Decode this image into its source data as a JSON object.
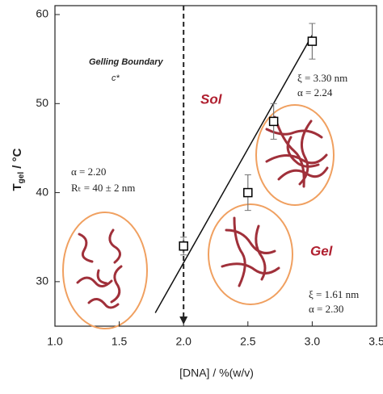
{
  "chart_data": {
    "type": "scatter",
    "x_label": "[DNA] / %(w/v)",
    "y_label": {
      "main": "T",
      "sub": "gel",
      "unit": " / °C"
    },
    "xlim": [
      1,
      3.5
    ],
    "xticks": [
      {
        "value": 1,
        "label": "1.0"
      },
      1.5,
      {
        "value": 2,
        "label": "2.0"
      },
      2.5,
      {
        "value": 3,
        "label": "3.0"
      },
      3.5
    ],
    "ylim": [
      25,
      61
    ],
    "yticks": [
      30,
      40,
      50,
      60
    ],
    "series": [
      {
        "color": "#000000",
        "x": [
          2.0,
          2.5,
          2.7,
          3.0
        ],
        "values": [
          34,
          40,
          48,
          57
        ],
        "errors": [
          1,
          2,
          2,
          2
        ]
      }
    ],
    "fit_line": {
      "x": [
        1.78,
        3.0
      ],
      "y": [
        26.5,
        57.7
      ]
    },
    "boundary_x": 2.0,
    "annotations": {
      "boundary": "Gelling Boundary",
      "cstar": "c*",
      "sol": "Sol",
      "gel": "Gel",
      "xi_sol": "ξ = 3.30 nm",
      "alpha_sol": "α = 2.24",
      "alpha_dilute": "α = 2.20",
      "r_dilute": "Rₜ = 40 ± 2 nm",
      "xi_gel": "ξ = 1.61 nm",
      "alpha_gel": "α = 2.30"
    }
  }
}
